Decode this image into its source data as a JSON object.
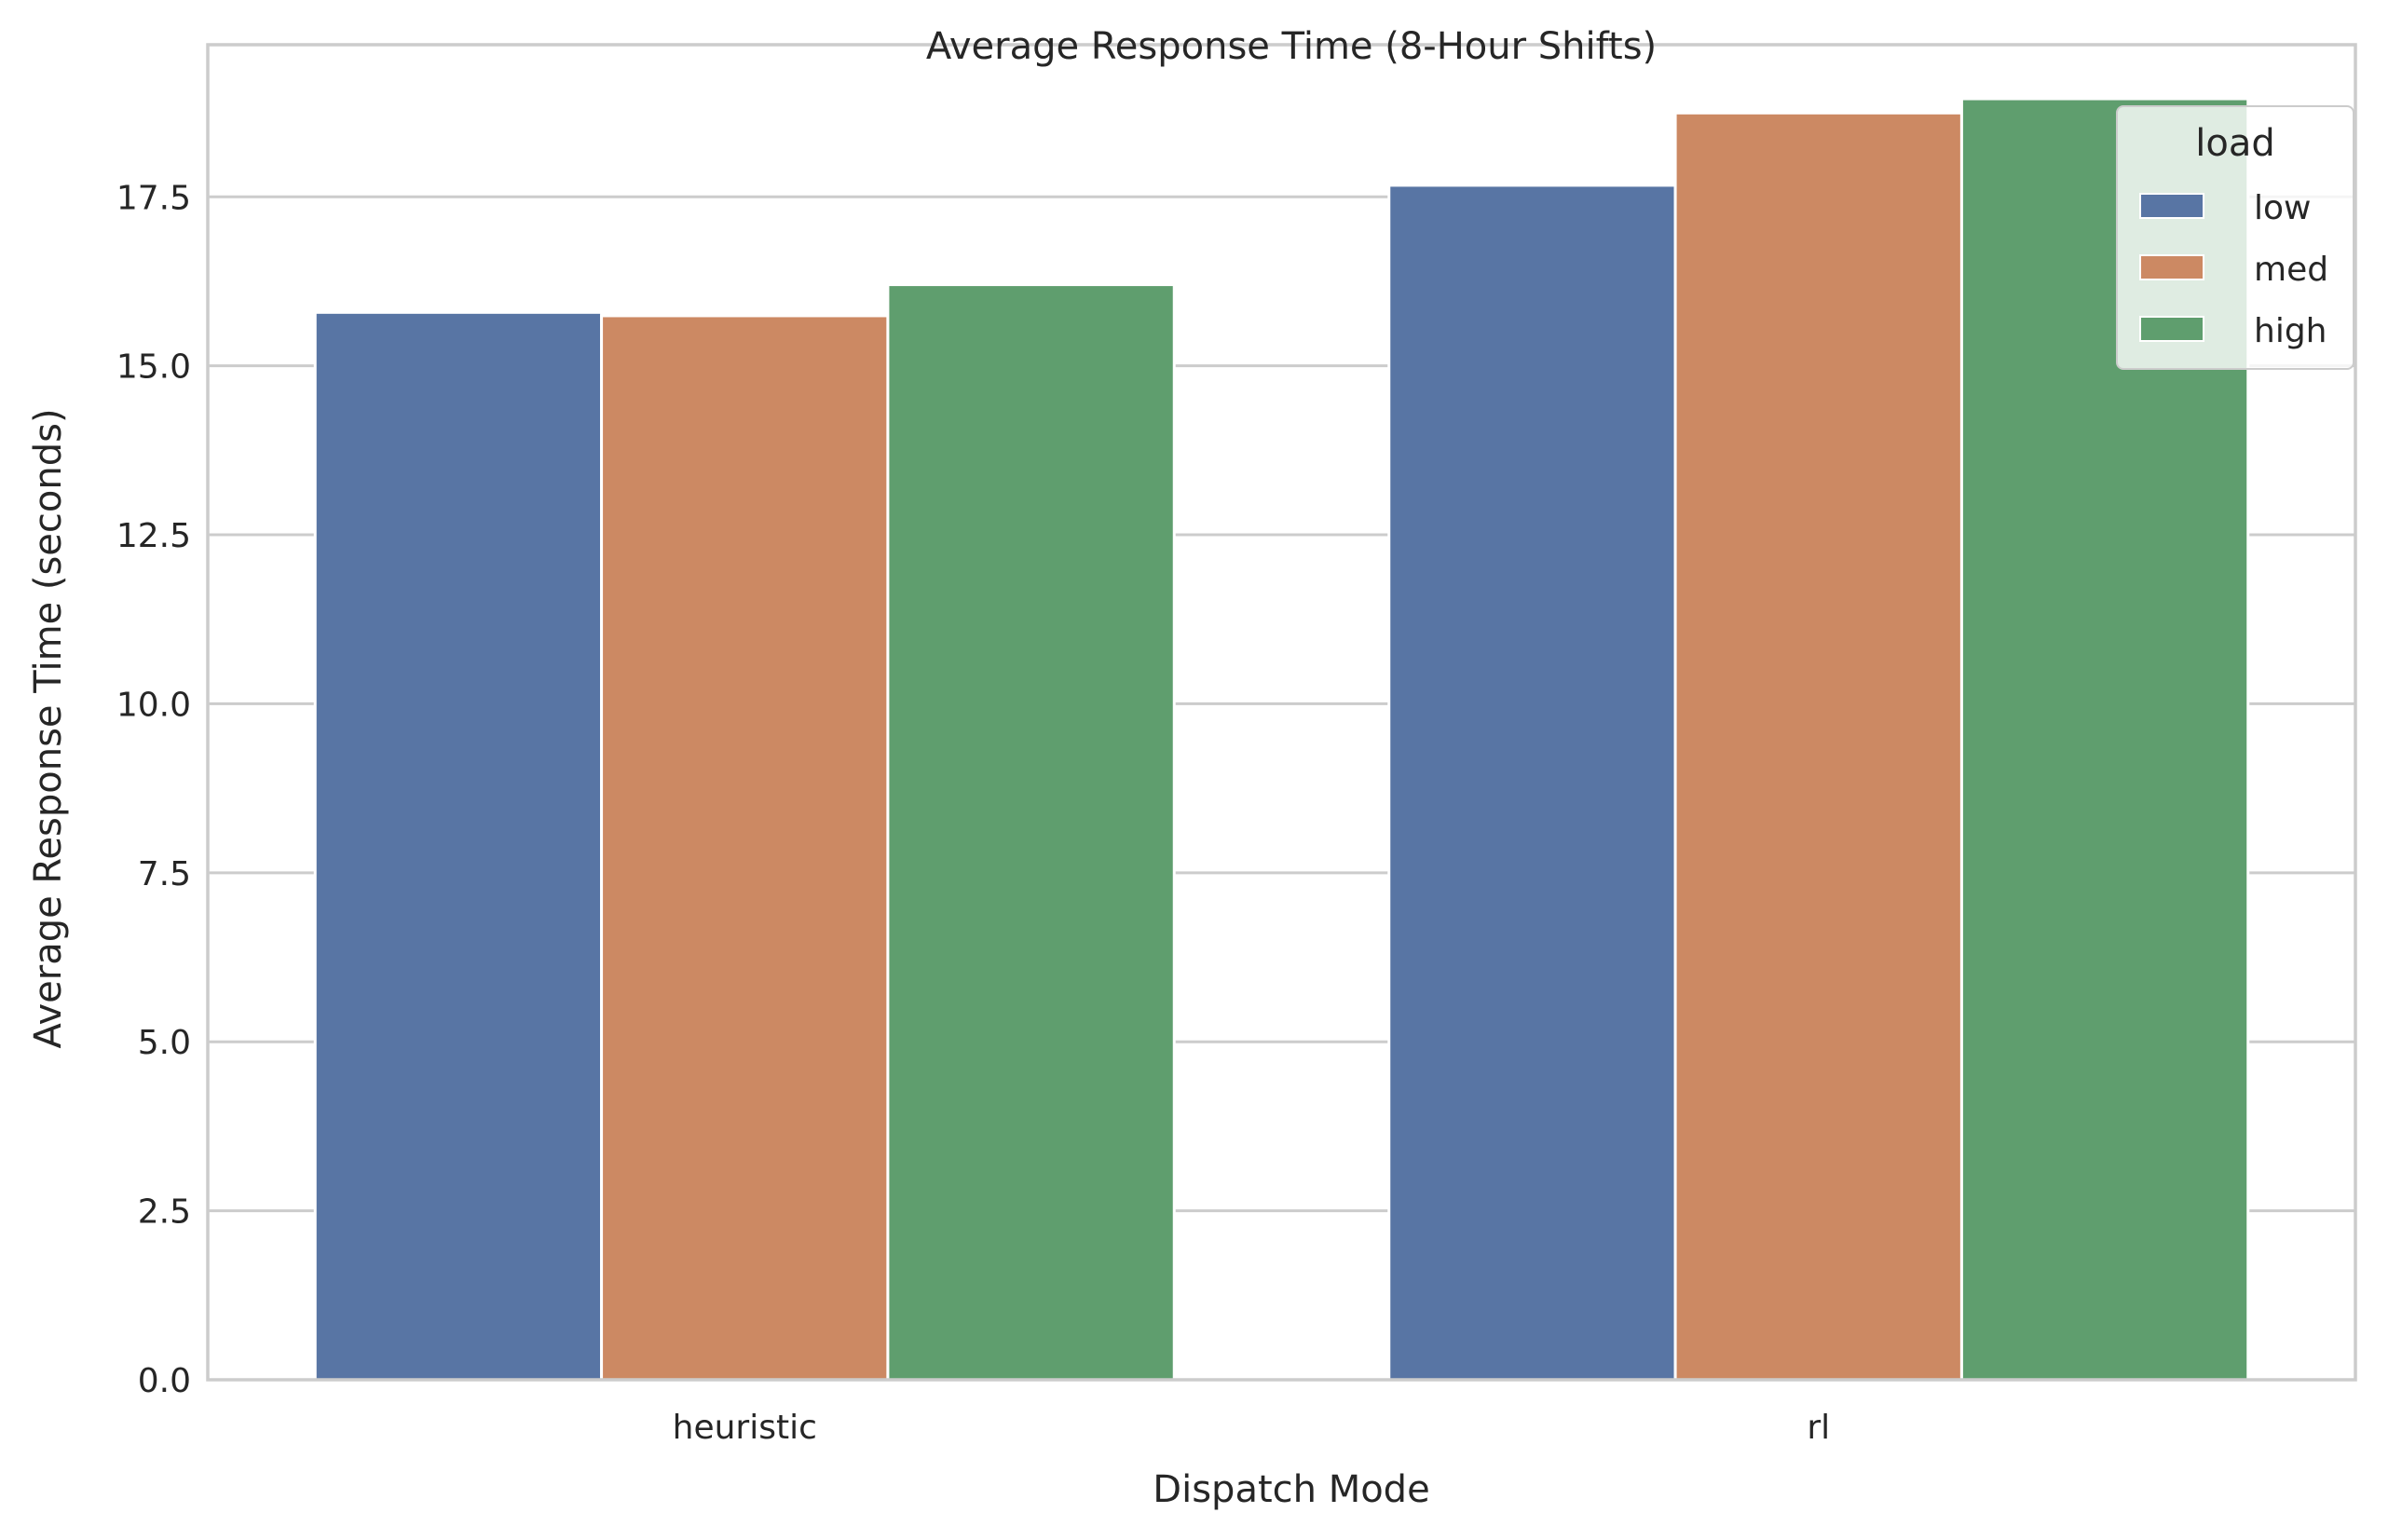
{
  "chart_data": {
    "type": "bar",
    "title": "Average Response Time (8-Hour Shifts)",
    "xlabel": "Dispatch Mode",
    "ylabel": "Average Response Time (seconds)",
    "categories": [
      "heuristic",
      "rl"
    ],
    "legend_title": "load",
    "legend_position": "top-right",
    "grid": "horizontal",
    "ylim": [
      0,
      19.75
    ],
    "yticks": [
      0.0,
      2.5,
      5.0,
      7.5,
      10.0,
      12.5,
      15.0,
      17.5
    ],
    "ytick_labels": [
      "0.0",
      "2.5",
      "5.0",
      "7.5",
      "10.0",
      "12.5",
      "15.0",
      "17.5"
    ],
    "series": [
      {
        "name": "low",
        "color": "#5875a4",
        "values": [
          15.79,
          17.67
        ]
      },
      {
        "name": "med",
        "color": "#cc8963",
        "values": [
          15.74,
          18.74
        ]
      },
      {
        "name": "high",
        "color": "#5f9e6e",
        "values": [
          16.2,
          18.95
        ]
      }
    ]
  }
}
